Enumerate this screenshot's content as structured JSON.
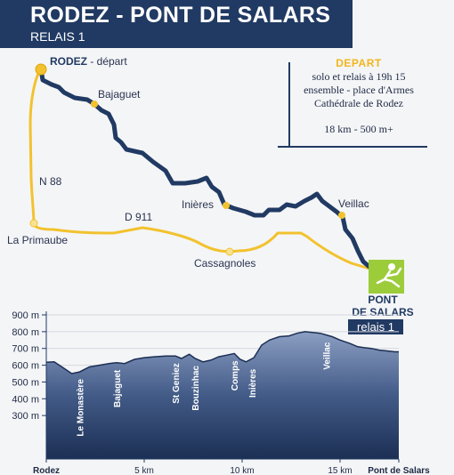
{
  "header": {
    "title": "RODEZ - PONT DE SALARS",
    "subtitle": "RELAIS 1"
  },
  "depart": {
    "title": "DEPART",
    "line1": "solo et relais à 19h 15",
    "line2": "ensemble - place d'Armes",
    "line3": "Cathédrale de Rodez",
    "distance": "18 km - 500 m+"
  },
  "map": {
    "start_name": "RODEZ",
    "start_suffix": " - départ",
    "places": {
      "bajaguet": "Bajaguet",
      "inieres": "Inières",
      "veillac": "Veillac",
      "la_primaube": "La Primaube",
      "cassagnoles": "Cassagnoles"
    },
    "roads": {
      "n88": "N 88",
      "d911": "D 911"
    },
    "finish_line1": "PONT",
    "finish_line2": "DE SALARS",
    "relais_tag": "relais 1",
    "colors": {
      "route": "#213a63",
      "road": "#f2c22e",
      "finish_icon": "#9ccc3a"
    }
  },
  "chart_data": {
    "type": "area",
    "title": "",
    "xlabel": "",
    "ylabel": "",
    "ylim": [
      200,
      900
    ],
    "xlim": [
      0,
      18
    ],
    "y_ticks": [
      "900 m",
      "800 m",
      "700 m",
      "600 m",
      "500 m",
      "400 m",
      "300 m"
    ],
    "x_ticks": [
      "Rodez",
      "5 km",
      "10 km",
      "15 km",
      "Pont de Salars"
    ],
    "x_tick_values": [
      0,
      5,
      10,
      15,
      18
    ],
    "y_unit_label": "900 m",
    "series": [
      {
        "x": [
          0,
          0.4,
          0.8,
          1.3,
          1.7,
          2.2,
          2.7,
          3.2,
          3.6,
          4.0,
          4.5,
          5.0,
          5.5,
          6.1,
          6.6,
          6.9,
          7.3,
          7.6,
          8.0,
          8.4,
          8.8,
          9.2,
          9.6,
          9.9,
          10.2,
          10.6,
          11.0,
          11.4,
          11.9,
          12.4,
          12.8,
          13.2,
          13.6,
          14.0,
          14.3,
          14.6,
          15.0,
          15.5,
          15.9,
          16.2,
          16.6,
          17.0,
          17.4,
          17.8,
          18.0
        ],
        "values": [
          618,
          620,
          590,
          550,
          560,
          590,
          600,
          610,
          615,
          610,
          635,
          645,
          650,
          655,
          655,
          640,
          665,
          640,
          620,
          630,
          650,
          660,
          670,
          635,
          620,
          645,
          720,
          750,
          770,
          775,
          790,
          800,
          795,
          790,
          780,
          770,
          750,
          730,
          710,
          705,
          700,
          690,
          685,
          680,
          680
        ]
      }
    ],
    "annotations": [
      {
        "x": 1.7,
        "label": "Le Monastère"
      },
      {
        "x": 3.6,
        "label": "Bajaguet"
      },
      {
        "x": 6.6,
        "label": "St Geniez"
      },
      {
        "x": 7.6,
        "label": "Bouzinhac"
      },
      {
        "x": 9.6,
        "label": "Comps"
      },
      {
        "x": 10.5,
        "label": "Inières"
      },
      {
        "x": 14.3,
        "label": "Veillac"
      }
    ]
  }
}
